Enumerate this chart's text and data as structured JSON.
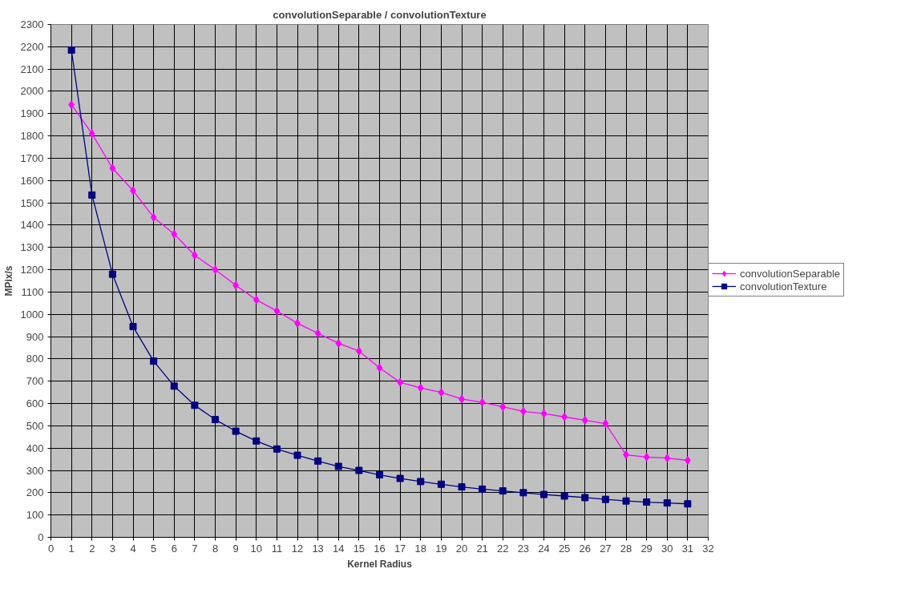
{
  "chart_data": {
    "type": "line",
    "title": "convolutionSeparable / convolutionTexture",
    "xlabel": "Kernel Radius",
    "ylabel": "MPix/s",
    "x": [
      1,
      2,
      3,
      4,
      5,
      6,
      7,
      8,
      9,
      10,
      11,
      12,
      13,
      14,
      15,
      16,
      17,
      18,
      19,
      20,
      21,
      22,
      23,
      24,
      25,
      26,
      27,
      28,
      29,
      30,
      31
    ],
    "series": [
      {
        "name": "convolutionSeparable",
        "color": "#ff00ff",
        "marker": "diamond",
        "values": [
          1940,
          1810,
          1655,
          1555,
          1435,
          1360,
          1265,
          1200,
          1130,
          1065,
          1015,
          960,
          915,
          870,
          835,
          760,
          695,
          670,
          650,
          620,
          605,
          585,
          565,
          555,
          540,
          525,
          510,
          370,
          360,
          355,
          345
        ]
      },
      {
        "name": "convolutionTexture",
        "color": "#000080",
        "marker": "square",
        "values": [
          2185,
          1535,
          1180,
          945,
          790,
          678,
          592,
          528,
          476,
          432,
          396,
          368,
          342,
          318,
          300,
          280,
          264,
          250,
          238,
          226,
          216,
          208,
          200,
          192,
          185,
          178,
          170,
          163,
          158,
          154,
          150
        ]
      }
    ],
    "xlim": [
      0,
      32
    ],
    "xticks": [
      0,
      1,
      2,
      3,
      4,
      5,
      6,
      7,
      8,
      9,
      10,
      11,
      12,
      13,
      14,
      15,
      16,
      17,
      18,
      19,
      20,
      21,
      22,
      23,
      24,
      25,
      26,
      27,
      28,
      29,
      30,
      31,
      32
    ],
    "ylim": [
      0,
      2300
    ],
    "yticks": [
      0,
      100,
      200,
      300,
      400,
      500,
      600,
      700,
      800,
      900,
      1000,
      1100,
      1200,
      1300,
      1400,
      1500,
      1600,
      1700,
      1800,
      1900,
      2000,
      2100,
      2200,
      2300
    ],
    "grid": true,
    "legend": "right",
    "line_style": "solid"
  }
}
